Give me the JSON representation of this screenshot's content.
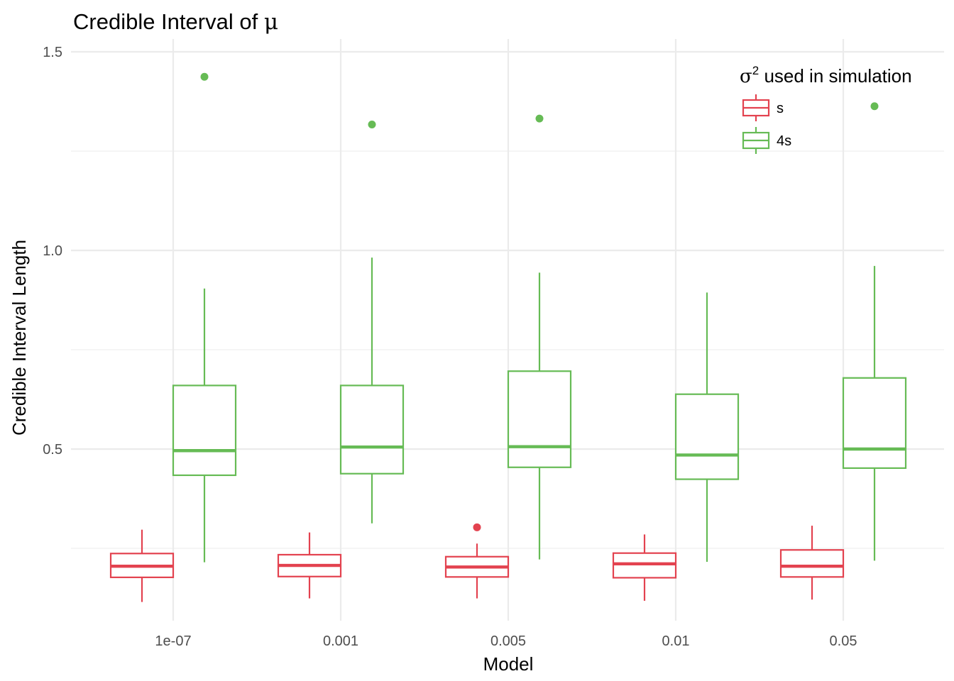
{
  "chart_data": {
    "type": "boxplot",
    "title": "Credible Interval of",
    "title_symbol": "μ",
    "xlabel": "Model",
    "ylabel": "Credible Interval Length",
    "categories": [
      "1e-07",
      "0.001",
      "0.005",
      "0.01",
      "0.05"
    ],
    "ylim": [
      0.1,
      1.58
    ],
    "yticks": [
      0.5,
      1.0,
      1.5
    ],
    "ytick_labels": [
      "0.5",
      "1.0",
      "1.5"
    ],
    "yminor": [
      0.25,
      0.75,
      1.25
    ],
    "grid": true,
    "legend": {
      "title_symbol": "σ",
      "title_sup": "2",
      "title": "used in simulation",
      "placement": "top-right",
      "entries": [
        "s",
        "4s"
      ]
    },
    "series": [
      {
        "name": "s",
        "color": "#e3424f",
        "boxes": [
          {
            "lower_whisker": 0.115,
            "q1": 0.177,
            "median": 0.205,
            "q3": 0.237,
            "upper_whisker": 0.297,
            "outliers": []
          },
          {
            "lower_whisker": 0.124,
            "q1": 0.179,
            "median": 0.207,
            "q3": 0.234,
            "upper_whisker": 0.29,
            "outliers": []
          },
          {
            "lower_whisker": 0.124,
            "q1": 0.178,
            "median": 0.203,
            "q3": 0.229,
            "upper_whisker": 0.262,
            "outliers": [
              0.303
            ]
          },
          {
            "lower_whisker": 0.118,
            "q1": 0.176,
            "median": 0.211,
            "q3": 0.238,
            "upper_whisker": 0.285,
            "outliers": []
          },
          {
            "lower_whisker": 0.121,
            "q1": 0.178,
            "median": 0.205,
            "q3": 0.246,
            "upper_whisker": 0.307,
            "outliers": []
          }
        ]
      },
      {
        "name": "4s",
        "color": "#66bb55",
        "boxes": [
          {
            "lower_whisker": 0.215,
            "q1": 0.434,
            "median": 0.496,
            "q3": 0.66,
            "upper_whisker": 0.904,
            "outliers": [
              1.437
            ]
          },
          {
            "lower_whisker": 0.313,
            "q1": 0.438,
            "median": 0.505,
            "q3": 0.66,
            "upper_whisker": 0.982,
            "outliers": [
              1.317
            ]
          },
          {
            "lower_whisker": 0.222,
            "q1": 0.454,
            "median": 0.506,
            "q3": 0.696,
            "upper_whisker": 0.944,
            "outliers": [
              1.332
            ]
          },
          {
            "lower_whisker": 0.216,
            "q1": 0.424,
            "median": 0.485,
            "q3": 0.638,
            "upper_whisker": 0.894,
            "outliers": []
          },
          {
            "lower_whisker": 0.219,
            "q1": 0.452,
            "median": 0.5,
            "q3": 0.679,
            "upper_whisker": 0.961,
            "outliers": [
              1.363
            ]
          }
        ]
      }
    ]
  }
}
